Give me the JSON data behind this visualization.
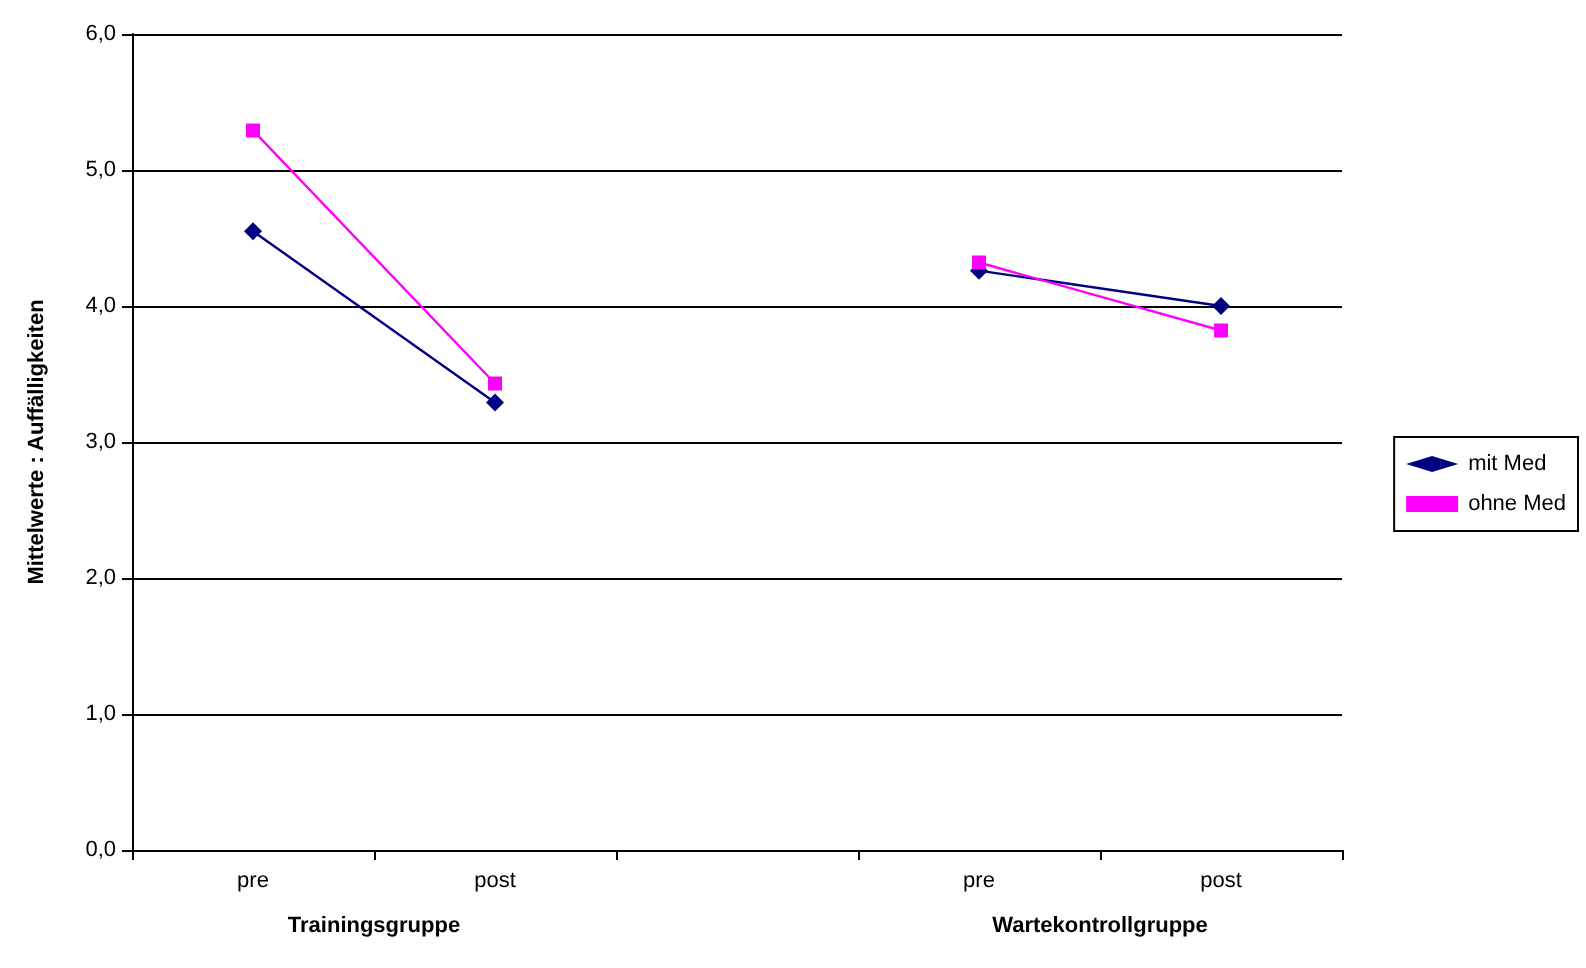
{
  "chart_data": {
    "type": "line",
    "ylabel": "Mittelwerte : Auffälligkeiten",
    "categories": [
      "pre",
      "post",
      null,
      "pre",
      "post"
    ],
    "series": [
      {
        "name": "mit Med",
        "color": "#000080",
        "marker": "diamond",
        "values": [
          4.55,
          3.29,
          null,
          4.26,
          4.0
        ]
      },
      {
        "name": "ohne Med",
        "color": "#ff00ff",
        "marker": "square",
        "values": [
          5.29,
          3.43,
          null,
          4.32,
          3.82
        ]
      }
    ],
    "ylim": [
      0,
      6
    ],
    "yticks": [
      {
        "value": 0,
        "label": "0,0"
      },
      {
        "value": 1,
        "label": "1,0"
      },
      {
        "value": 2,
        "label": "2,0"
      },
      {
        "value": 3,
        "label": "3,0"
      },
      {
        "value": 4,
        "label": "4,0"
      },
      {
        "value": 5,
        "label": "5,0"
      },
      {
        "value": 6,
        "label": "6,0"
      }
    ],
    "annotations": [
      "Trainingsgruppe",
      "Wartekontrollgruppe"
    ],
    "grid": "y",
    "legend": "right",
    "line_style": "solid"
  }
}
